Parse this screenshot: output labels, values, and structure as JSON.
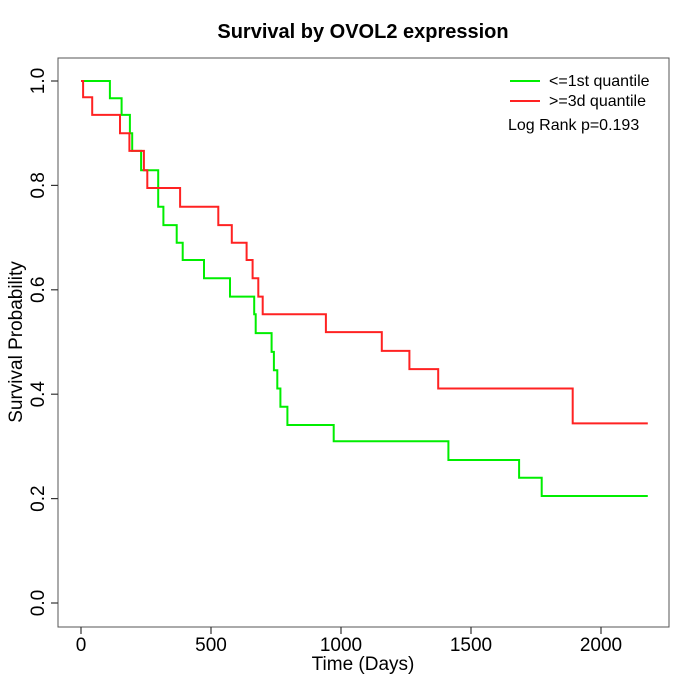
{
  "title": "Survival by OVOL2 expression",
  "axes": {
    "x": {
      "label": "Time (Days)",
      "tick_values": [
        0,
        500,
        1000,
        1500,
        2000
      ],
      "tick_labels": [
        "0",
        "500",
        "1000",
        "1500",
        "2000"
      ]
    },
    "y": {
      "label": "Survival Probability",
      "tick_values": [
        0,
        0.2,
        0.4,
        0.6,
        0.8,
        1.0
      ],
      "tick_labels": [
        "0.0",
        "0.2",
        "0.4",
        "0.6",
        "0.8",
        "1.0"
      ]
    }
  },
  "legend": {
    "items": [
      {
        "label": "<=1st quantile",
        "color": "#00EE00"
      },
      {
        "label": ">=3d quantile",
        "color": "#FF2222"
      }
    ],
    "annotation": "Log Rank p=0.193"
  },
  "chart_data": {
    "type": "line",
    "subtype": "kaplan-meier-step",
    "title": "Survival by OVOL2 expression",
    "xlabel": "Time (Days)",
    "ylabel": "Survival Probability",
    "xlim": [
      0,
      2260
    ],
    "ylim": [
      0,
      1.04
    ],
    "grid": false,
    "legend_position": "top-right",
    "annotation": "Log Rank p=0.193",
    "x_ticks": [
      0,
      500,
      1000,
      1500,
      2000
    ],
    "y_ticks": [
      0,
      0.2,
      0.4,
      0.6,
      0.8,
      1.0
    ],
    "series": [
      {
        "name": "<=1st quantile",
        "color": "#00EE00",
        "end_time": 2180,
        "steps": [
          [
            0,
            1.0
          ],
          [
            111,
            0.967
          ],
          [
            156,
            0.935
          ],
          [
            188,
            0.9
          ],
          [
            197,
            0.866
          ],
          [
            231,
            0.829
          ],
          [
            297,
            0.759
          ],
          [
            317,
            0.724
          ],
          [
            368,
            0.69
          ],
          [
            391,
            0.657
          ],
          [
            473,
            0.622
          ],
          [
            573,
            0.587
          ],
          [
            666,
            0.553
          ],
          [
            672,
            0.517
          ],
          [
            733,
            0.481
          ],
          [
            742,
            0.446
          ],
          [
            755,
            0.411
          ],
          [
            767,
            0.376
          ],
          [
            794,
            0.341
          ],
          [
            972,
            0.31
          ],
          [
            1413,
            0.274
          ],
          [
            1685,
            0.24
          ],
          [
            1772,
            0.205
          ]
        ]
      },
      {
        "name": ">=3d quantile",
        "color": "#FF2222",
        "end_time": 2180,
        "steps": [
          [
            0,
            1.0
          ],
          [
            8,
            0.969
          ],
          [
            43,
            0.935
          ],
          [
            150,
            0.9
          ],
          [
            186,
            0.866
          ],
          [
            242,
            0.829
          ],
          [
            255,
            0.795
          ],
          [
            381,
            0.759
          ],
          [
            528,
            0.724
          ],
          [
            580,
            0.69
          ],
          [
            637,
            0.657
          ],
          [
            660,
            0.622
          ],
          [
            682,
            0.587
          ],
          [
            699,
            0.553
          ],
          [
            942,
            0.519
          ],
          [
            1157,
            0.483
          ],
          [
            1263,
            0.448
          ],
          [
            1374,
            0.411
          ],
          [
            1891,
            0.344
          ]
        ]
      }
    ]
  }
}
